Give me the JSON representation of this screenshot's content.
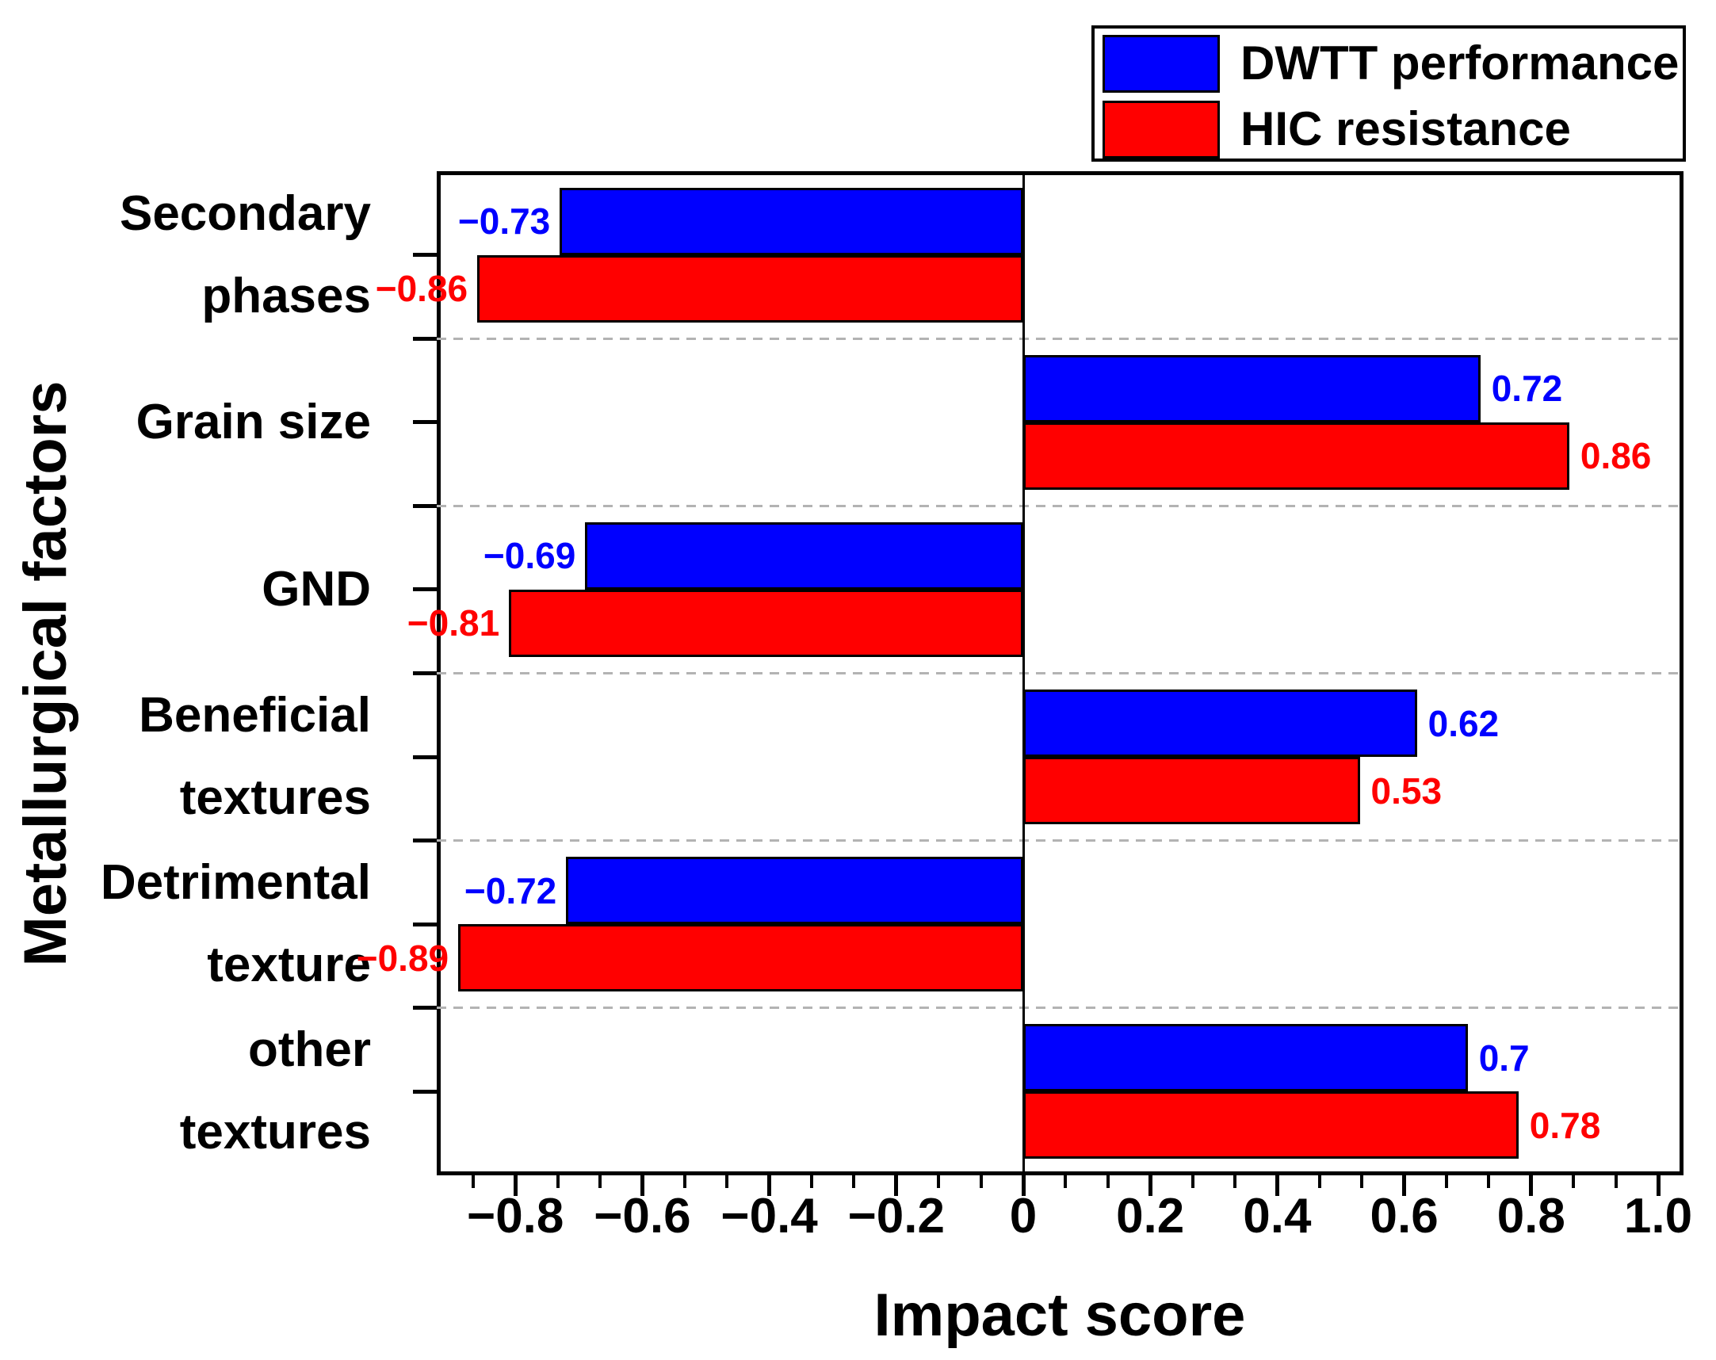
{
  "chart_data": {
    "type": "bar",
    "orientation": "horizontal",
    "xlabel": "Impact score",
    "ylabel": "Metallurgical factors",
    "categories": [
      "Secondary phases",
      "Grain size",
      "GND",
      "Beneficial textures",
      "Detrimental texture",
      "other textures"
    ],
    "category_label_lines": [
      [
        "Secondary",
        "phases"
      ],
      [
        "Grain size"
      ],
      [
        "GND"
      ],
      [
        "Beneficial",
        "textures"
      ],
      [
        "Detrimental",
        "texture"
      ],
      [
        "other",
        "textures"
      ]
    ],
    "series": [
      {
        "name": "DWTT performance",
        "color": "#0000ff",
        "values": [
          -0.73,
          0.72,
          -0.69,
          0.62,
          -0.72,
          0.7
        ],
        "value_labels": [
          "−0.73",
          "0.72",
          "−0.69",
          "0.62",
          "−0.72",
          "0.7"
        ]
      },
      {
        "name": "HIC resistance",
        "color": "#ff0000",
        "values": [
          -0.86,
          0.86,
          -0.81,
          0.53,
          -0.89,
          0.78
        ],
        "value_labels": [
          "−0.86",
          "0.86",
          "−0.81",
          "0.53",
          "−0.89",
          "0.78"
        ]
      }
    ],
    "xlim": [
      -0.924,
      1.04
    ],
    "x_major_ticks": [
      -0.8,
      -0.6,
      -0.4,
      -0.2,
      0,
      0.2,
      0.4,
      0.6,
      0.8,
      1.0
    ],
    "x_major_tick_labels": [
      "−0.8",
      "−0.6",
      "−0.4",
      "−0.2",
      "0",
      "0.2",
      "0.4",
      "0.6",
      "0.8",
      "1.0"
    ],
    "x_minor_ticks_between_majors": 2,
    "grid": "dashed horizontal separators between category bands",
    "legend_position": "top-right",
    "colors": {
      "grid": "#b3b3b3",
      "axis": "#000000",
      "background": "#ffffff"
    }
  }
}
